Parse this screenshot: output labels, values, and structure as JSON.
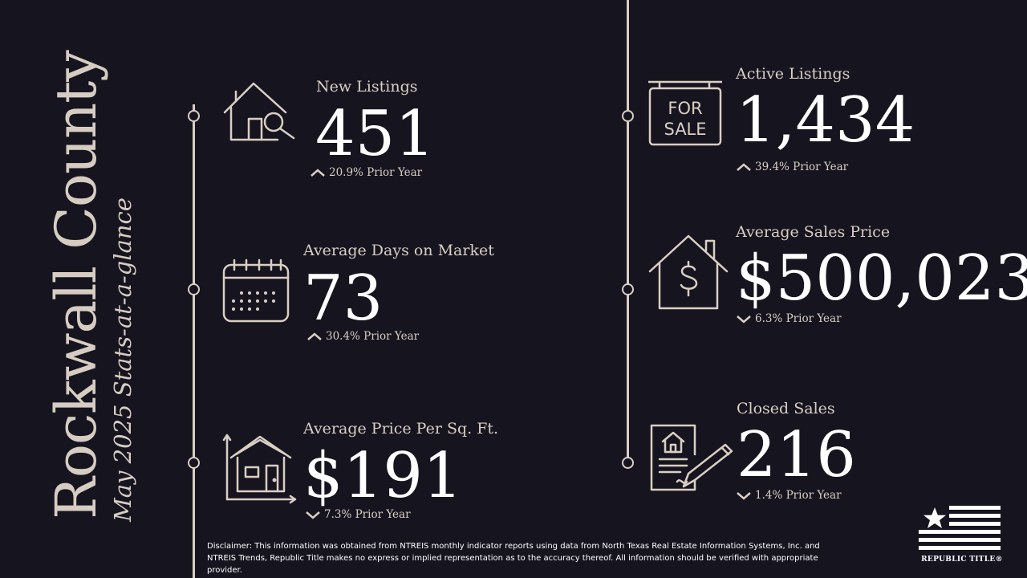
{
  "title": {
    "county": "Rockwall County",
    "subtitle": "May 2025 Stats-at-a-glance"
  },
  "stats": {
    "new_listings": {
      "label": "New Listings",
      "value": "451",
      "change": "20.9% Prior Year",
      "direction": "up",
      "icon": "house-search-icon"
    },
    "active_listings": {
      "label": "Active Listings",
      "value": "1,434",
      "change": "39.4% Prior Year",
      "direction": "up",
      "icon": "for-sale-sign-icon",
      "sign_text_1": "FOR",
      "sign_text_2": "SALE"
    },
    "avg_days": {
      "label": "Average Days on Market",
      "value": "73",
      "change": "30.4% Prior Year",
      "direction": "up",
      "icon": "calendar-icon"
    },
    "avg_sales_price": {
      "label": "Average Sales Price",
      "value": "$500,023",
      "change": "6.3% Prior Year",
      "direction": "down",
      "icon": "house-dollar-icon"
    },
    "avg_price_sqft": {
      "label": "Average Price Per Sq. Ft.",
      "value": "$191",
      "change": "7.3% Prior Year",
      "direction": "down",
      "icon": "house-chart-icon"
    },
    "closed_sales": {
      "label": "Closed Sales",
      "value": "216",
      "change": "1.4% Prior Year",
      "direction": "down",
      "icon": "contract-signing-icon"
    }
  },
  "disclaimer": "Disclaimer: This information was obtained from NTREIS monthly indicator reports using data from North Texas Real Estate Information Systems, Inc. and NTREIS Trends, Republic Title makes no express or implied representation as to the accuracy thereof. All information should be verified with appropriate provider.",
  "logo": {
    "text": "REPUBLIC TITLE®",
    "icon": "flag-logo-icon"
  },
  "colors": {
    "background": "#16141f",
    "accent": "#d9cfc3",
    "value": "#ffffff"
  }
}
